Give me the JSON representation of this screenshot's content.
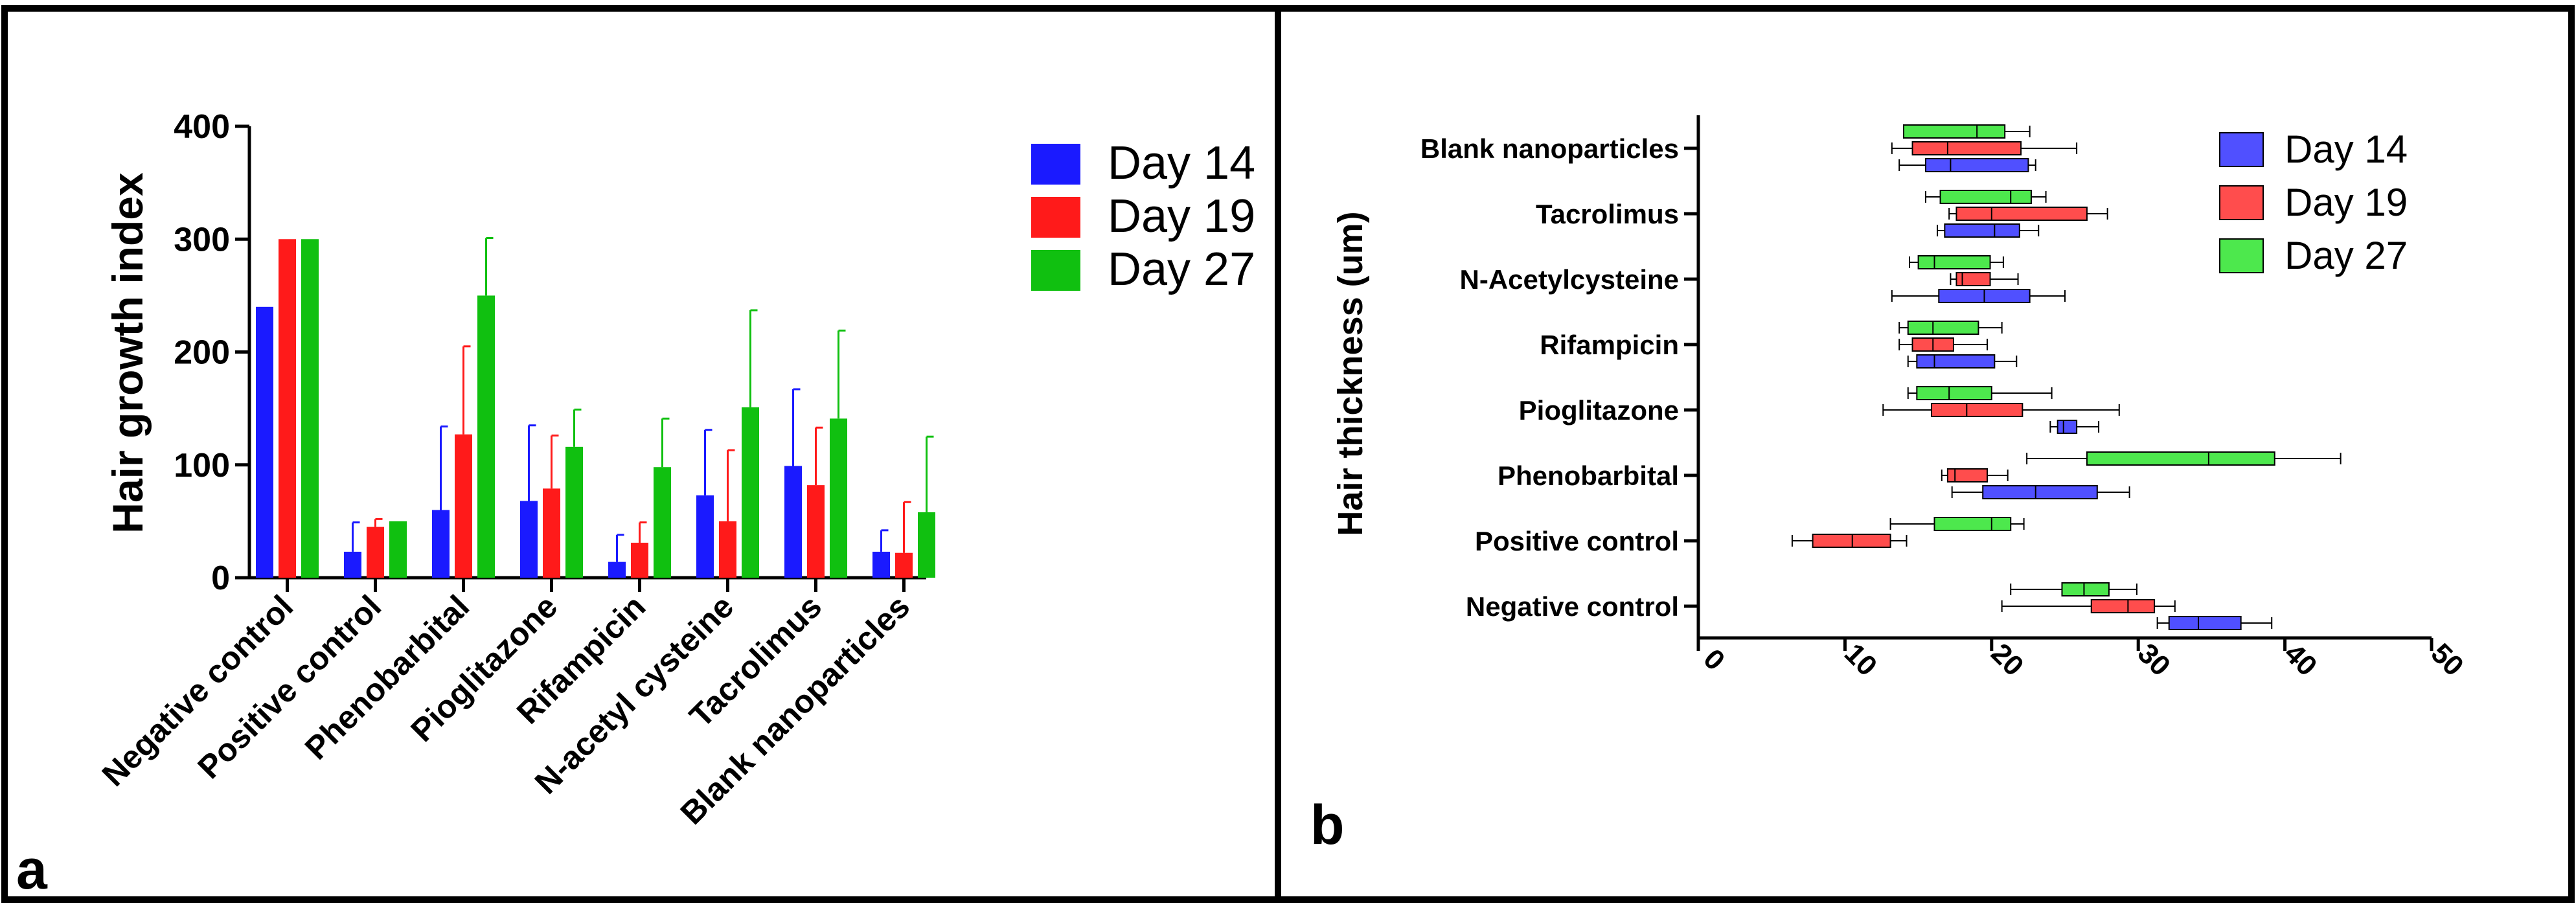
{
  "panels": {
    "a": {
      "letter": "a"
    },
    "b": {
      "letter": "b"
    }
  },
  "colors": {
    "day14": "#1a1aff",
    "day19": "#ff1a1a",
    "day27": "#10c010",
    "box14": "#5050ff",
    "box19": "#ff4d4d",
    "box27": "#4de84d"
  },
  "chart_data": [
    {
      "id": "a",
      "type": "bar",
      "title": "",
      "xlabel": "",
      "ylabel": "Hair growth index",
      "ylim": [
        0,
        400
      ],
      "yticks": [
        0,
        100,
        200,
        300,
        400
      ],
      "categories": [
        "Negative control",
        "Positive control",
        "Phenobarbital",
        "Pioglitazone",
        "Rifampicin",
        "N-acetyl cysteine",
        "Tacrolimus",
        "Blank nanoparticles"
      ],
      "series": [
        {
          "name": "Day 14",
          "color": "#1a1aff",
          "values": [
            240,
            23,
            60,
            68,
            14,
            73,
            99,
            23
          ],
          "errors": [
            0,
            26,
            74,
            67,
            24,
            58,
            68,
            19
          ]
        },
        {
          "name": "Day 19",
          "color": "#ff1a1a",
          "values": [
            300,
            45,
            127,
            79,
            31,
            50,
            82,
            22
          ],
          "errors": [
            0,
            7,
            78,
            47,
            18,
            63,
            51,
            45
          ]
        },
        {
          "name": "Day 27",
          "color": "#10c010",
          "values": [
            300,
            50,
            250,
            116,
            98,
            151,
            141,
            58
          ],
          "errors": [
            0,
            0,
            51,
            33,
            43,
            86,
            78,
            67
          ]
        }
      ],
      "legend": "right"
    },
    {
      "id": "b",
      "type": "box",
      "title": "",
      "xlabel": "",
      "ylabel": "Hair thickness (um)",
      "xlim": [
        0,
        50
      ],
      "xticks": [
        0,
        10,
        20,
        30,
        40,
        50
      ],
      "categories": [
        "Blank nanoparticles",
        "Tacrolimus",
        "N-Acetylcysteine",
        "Rifampicin",
        "Pioglitazone",
        "Phenobarbital",
        "Positive control",
        "Negative control"
      ],
      "series": [
        {
          "name": "Day 14",
          "color": "#5050ff",
          "boxes": [
            {
              "min": 13.7,
              "q1": 15.5,
              "median": 17.2,
              "q3": 22.5,
              "max": 23.0
            },
            {
              "min": 16.3,
              "q1": 16.8,
              "median": 20.2,
              "q3": 21.9,
              "max": 23.2
            },
            {
              "min": 13.2,
              "q1": 16.4,
              "median": 19.5,
              "q3": 22.6,
              "max": 25.0
            },
            {
              "min": 14.3,
              "q1": 14.9,
              "median": 16.1,
              "q3": 20.2,
              "max": 21.7
            },
            {
              "min": 24.0,
              "q1": 24.5,
              "median": 24.9,
              "q3": 25.8,
              "max": 27.3
            },
            {
              "min": 17.3,
              "q1": 19.4,
              "median": 23.0,
              "q3": 27.2,
              "max": 29.4
            },
            null,
            {
              "min": 31.3,
              "q1": 32.1,
              "median": 34.1,
              "q3": 37.0,
              "max": 39.1
            }
          ]
        },
        {
          "name": "Day 19",
          "color": "#ff4d4d",
          "boxes": [
            {
              "min": 13.2,
              "q1": 14.6,
              "median": 17.0,
              "q3": 22.0,
              "max": 25.8
            },
            {
              "min": 17.1,
              "q1": 17.6,
              "median": 20.0,
              "q3": 26.5,
              "max": 27.9
            },
            {
              "min": 17.2,
              "q1": 17.6,
              "median": 18.0,
              "q3": 19.9,
              "max": 21.8
            },
            {
              "min": 13.7,
              "q1": 14.6,
              "median": 16.0,
              "q3": 17.4,
              "max": 19.7
            },
            {
              "min": 12.6,
              "q1": 15.9,
              "median": 18.3,
              "q3": 22.1,
              "max": 28.7
            },
            {
              "min": 16.6,
              "q1": 17.0,
              "median": 17.5,
              "q3": 19.7,
              "max": 21.1
            },
            {
              "min": 6.4,
              "q1": 7.8,
              "median": 10.5,
              "q3": 13.1,
              "max": 14.2
            },
            {
              "min": 20.7,
              "q1": 26.8,
              "median": 29.3,
              "q3": 31.1,
              "max": 32.5
            }
          ]
        },
        {
          "name": "Day 27",
          "color": "#4de84d",
          "boxes": [
            {
              "min": 14.0,
              "q1": 14.0,
              "median": 19.0,
              "q3": 20.9,
              "max": 22.6
            },
            {
              "min": 15.5,
              "q1": 16.5,
              "median": 21.3,
              "q3": 22.7,
              "max": 23.7
            },
            {
              "min": 14.4,
              "q1": 15.0,
              "median": 16.1,
              "q3": 19.9,
              "max": 20.8
            },
            {
              "min": 13.7,
              "q1": 14.3,
              "median": 16.0,
              "q3": 19.1,
              "max": 20.7
            },
            {
              "min": 14.3,
              "q1": 14.9,
              "median": 17.1,
              "q3": 20.0,
              "max": 24.1
            },
            {
              "min": 22.4,
              "q1": 26.5,
              "median": 34.8,
              "q3": 39.3,
              "max": 43.8
            },
            {
              "min": 13.1,
              "q1": 16.1,
              "median": 20.0,
              "q3": 21.3,
              "max": 22.2
            },
            {
              "min": 21.3,
              "q1": 24.8,
              "median": 26.3,
              "q3": 28.0,
              "max": 29.9
            }
          ]
        }
      ],
      "legend": "top-right"
    }
  ]
}
